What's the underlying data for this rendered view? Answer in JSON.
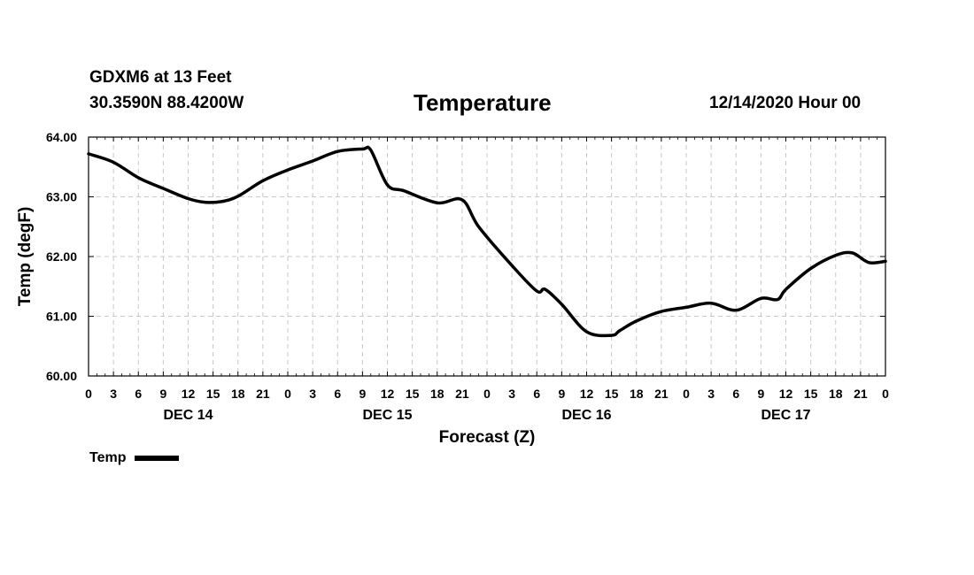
{
  "header": {
    "station": "GDXM6 at 13 Feet",
    "coords": "30.3590N 88.4200W",
    "datetime": "12/14/2020 Hour 00"
  },
  "chart_data": {
    "type": "line",
    "title": "Temperature",
    "xlabel": "Forecast (Z)",
    "ylabel": "Temp (degF)",
    "ylim": [
      60.0,
      64.0
    ],
    "xlim": [
      0,
      96
    ],
    "y_ticks": [
      "60.00",
      "61.00",
      "62.00",
      "63.00",
      "64.00"
    ],
    "x_tick_labels": [
      "0",
      "3",
      "6",
      "9",
      "12",
      "15",
      "18",
      "21",
      "0",
      "3",
      "6",
      "9",
      "12",
      "15",
      "18",
      "21",
      "0",
      "3",
      "6",
      "9",
      "12",
      "15",
      "18",
      "21",
      "0",
      "3",
      "6",
      "9",
      "12",
      "15",
      "18",
      "21",
      "0"
    ],
    "day_labels": [
      {
        "label": "DEC 14",
        "hour": 12
      },
      {
        "label": "DEC 15",
        "hour": 36
      },
      {
        "label": "DEC 16",
        "hour": 60
      },
      {
        "label": "DEC 17",
        "hour": 84
      }
    ],
    "grid": true,
    "series": [
      {
        "name": "Temp",
        "color": "#000000",
        "x": [
          0,
          3,
          6,
          9,
          12,
          14,
          16,
          18,
          21,
          24,
          27,
          30,
          33,
          34,
          36,
          38,
          42,
          45,
          47,
          51,
          54,
          55,
          57,
          60,
          63,
          64,
          66,
          69,
          72,
          75,
          78,
          81,
          83,
          84,
          87,
          90,
          92,
          94,
          96
        ],
        "values": [
          63.72,
          63.58,
          63.32,
          63.14,
          62.97,
          62.91,
          62.92,
          63.01,
          63.27,
          63.45,
          63.6,
          63.76,
          63.8,
          63.78,
          63.2,
          63.1,
          62.9,
          62.95,
          62.5,
          61.85,
          61.42,
          61.45,
          61.2,
          60.74,
          60.68,
          60.76,
          60.92,
          61.08,
          61.15,
          61.22,
          61.1,
          61.3,
          61.28,
          61.45,
          61.8,
          62.02,
          62.06,
          61.9,
          61.92
        ]
      }
    ],
    "legend": [
      {
        "label": "Temp",
        "position": "bottom-left"
      }
    ]
  }
}
